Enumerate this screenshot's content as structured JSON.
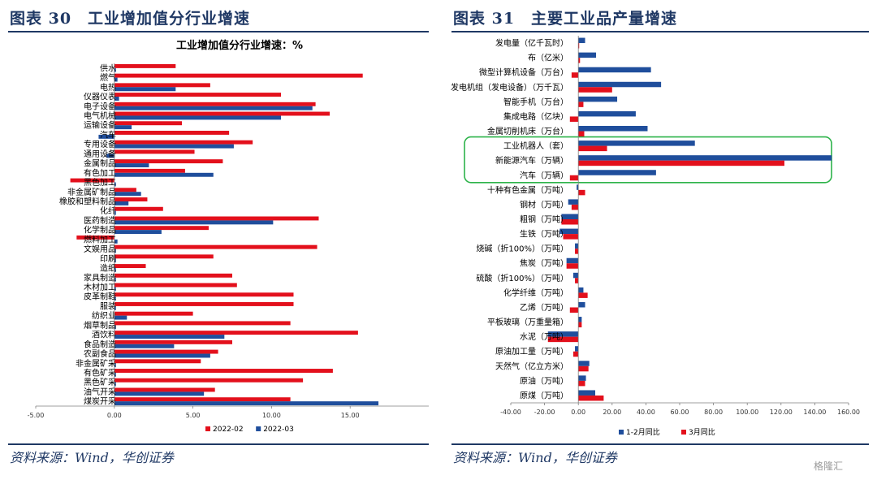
{
  "figures": [
    {
      "title": "图表 30　工业增加值分行业增速",
      "source": "资料来源：Wind，华创证券"
    },
    {
      "title": "图表 31　主要工业品产量增速",
      "source": "资料来源：Wind，华创证券"
    }
  ],
  "watermark": "格隆汇",
  "colors": {
    "red": "#e3101c",
    "blue": "#1f4e9c",
    "navy": "#1f3864",
    "highlight": "#2db34a"
  },
  "chart_data": [
    {
      "type": "bar",
      "orientation": "horizontal",
      "title": "工业增加值分行业增速：%",
      "categories": [
        "供水",
        "燃气",
        "电热",
        "仪器仪表",
        "电子设备",
        "电气机械",
        "运输设备",
        "汽车",
        "专用设备",
        "通用设备",
        "金属制品",
        "有色加工",
        "黑色加工",
        "非金属矿制品",
        "橡胶和塑料制品",
        "化纤",
        "医药制造",
        "化学制品",
        "燃料加工",
        "文娱用品",
        "印刷",
        "造纸",
        "家具制造",
        "木材加工",
        "皮革制鞋",
        "服装",
        "纺织业",
        "烟草制品",
        "酒饮料",
        "食品制造",
        "农副食品",
        "非金属矿采",
        "有色矿采",
        "黑色矿采",
        "油气开采",
        "煤炭开采"
      ],
      "series": [
        {
          "name": "2022-02",
          "color": "#e3101c",
          "values": [
            3.9,
            15.8,
            6.1,
            10.6,
            12.8,
            13.7,
            4.3,
            7.3,
            8.8,
            5.1,
            6.9,
            4.5,
            -2.8,
            1.4,
            2.1,
            3.1,
            13.0,
            6.0,
            -2.4,
            12.9,
            6.3,
            2.0,
            7.5,
            7.8,
            11.4,
            11.4,
            5.0,
            11.2,
            15.5,
            7.5,
            6.6,
            5.5,
            13.9,
            12.0,
            6.4,
            11.2
          ]
        },
        {
          "name": "2022-03",
          "color": "#1f4e9c",
          "values": [
            0.1,
            0.2,
            3.9,
            0.3,
            12.6,
            10.6,
            1.1,
            -1.0,
            7.6,
            -0.5,
            2.2,
            6.3,
            0.1,
            1.7,
            0.9,
            0.1,
            10.1,
            3.0,
            0.2,
            0.1,
            0.1,
            0.1,
            0.1,
            0.1,
            0.1,
            0.1,
            0.8,
            0.1,
            7.0,
            3.8,
            6.1,
            0.1,
            0.1,
            0.1,
            5.7,
            16.8
          ]
        }
      ],
      "xlim": [
        -5,
        20
      ],
      "xticks": [
        "-5.00",
        "0.00",
        "5.00",
        "10.00",
        "15.00"
      ],
      "legend": "bottom"
    },
    {
      "type": "bar",
      "orientation": "horizontal",
      "categories": [
        "发电量（亿千瓦时）",
        "布（亿米）",
        "微型计算机设备（万台）",
        "发电机组（发电设备）（万千瓦）",
        "智能手机（万台）",
        "集成电路（亿块）",
        "金属切削机床（万台）",
        "工业机器人（套）",
        "新能源汽车（万辆）",
        "汽车（万辆）",
        "十种有色金属（万吨）",
        "钢材（万吨）",
        "粗钢（万吨）",
        "生铁（万吨）",
        "烧碱（折100%）（万吨）",
        "焦炭（万吨）",
        "硫酸（折100%）（万吨）",
        "化学纤维（万吨）",
        "乙烯（万吨）",
        "平板玻璃（万重量箱）",
        "水泥（万吨）",
        "原油加工量（万吨）",
        "天然气（亿立方米）",
        "原油（万吨）",
        "原煤（万吨）"
      ],
      "series": [
        {
          "name": "1-2月同比",
          "color": "#1f4e9c",
          "values": [
            4.0,
            10.5,
            43.0,
            49.0,
            23.0,
            34.0,
            41.0,
            69.0,
            150.0,
            46.0,
            -1.0,
            -6.0,
            -10.0,
            -11.0,
            -2.0,
            -7.0,
            -3.0,
            3.0,
            4.0,
            2.0,
            -18.0,
            -2.0,
            6.5,
            4.5,
            10.0
          ]
        },
        {
          "name": "3月同比",
          "color": "#e3101c",
          "values": [
            0.5,
            1.0,
            -4.0,
            20.0,
            3.0,
            -5.0,
            3.5,
            17.0,
            122.0,
            -5.0,
            4.0,
            -4.0,
            -10.0,
            -9.0,
            -2.0,
            -7.0,
            -2.0,
            5.5,
            -5.0,
            2.0,
            -18.0,
            -3.0,
            6.0,
            4.0,
            15.0
          ]
        }
      ],
      "xlim": [
        -40,
        160
      ],
      "xticks": [
        "-40.00",
        "-20.00",
        "0.00",
        "20.00",
        "40.00",
        "60.00",
        "80.00",
        "100.00",
        "120.00",
        "140.00",
        "160.00"
      ],
      "legend": "bottom",
      "highlighted_categories": [
        "工业机器人（套）",
        "新能源汽车（万辆）",
        "汽车（万辆）"
      ]
    }
  ]
}
